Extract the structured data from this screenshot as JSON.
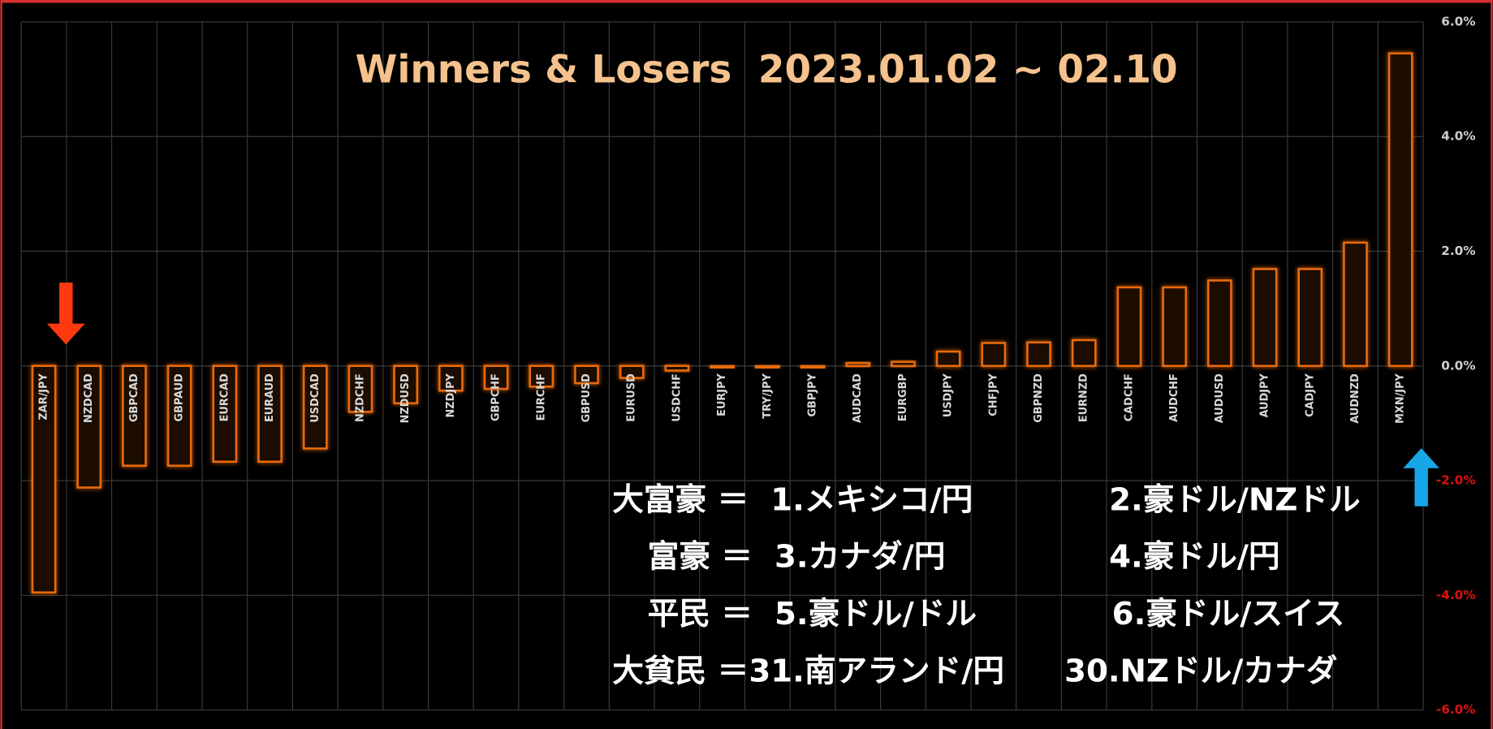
{
  "chart_data": {
    "type": "bar",
    "title": "Winners & Losers  2023.01.02 ~ 02.10",
    "categories": [
      "ZAR/JPY",
      "NZDCAD",
      "GBPCAD",
      "GBPAUD",
      "EURCAD",
      "EURAUD",
      "USDCAD",
      "NZDCHF",
      "NZDUSD",
      "NZDJPY",
      "GBPCHF",
      "EURCHF",
      "GBPUSD",
      "EURUSD",
      "USDCHF",
      "EURJPY",
      "TRY/JPY",
      "GBPJPY",
      "AUDCAD",
      "EURGBP",
      "USDJPY",
      "CHFJPY",
      "GBPNZD",
      "EURNZD",
      "CADCHF",
      "AUDCHF",
      "AUDUSD",
      "AUDJPY",
      "CADJPY",
      "AUDNZD",
      "MXN/JPY"
    ],
    "values": [
      -3.95,
      -2.12,
      -1.74,
      -1.74,
      -1.67,
      -1.67,
      -1.44,
      -0.8,
      -0.65,
      -0.43,
      -0.4,
      -0.36,
      -0.3,
      -0.21,
      -0.08,
      -0.03,
      -0.03,
      -0.03,
      0.05,
      0.07,
      0.25,
      0.4,
      0.41,
      0.45,
      1.37,
      1.37,
      1.49,
      1.69,
      1.69,
      2.15,
      5.45
    ],
    "color": "#e86a10",
    "ylim": [
      -6,
      6
    ],
    "yticks": [
      {
        "value": 6,
        "label": "6.0%"
      },
      {
        "value": 4,
        "label": "4.0%"
      },
      {
        "value": 2,
        "label": "2.0%"
      },
      {
        "value": 0,
        "label": "0.0%"
      },
      {
        "value": -2,
        "label": "-2.0%"
      },
      {
        "value": -4,
        "label": "-4.0%"
      },
      {
        "value": -6,
        "label": "-6.0%"
      }
    ],
    "negative_tick_color": "#e01010",
    "grid": true,
    "annotations": [
      {
        "left": "大富豪 ＝  1.メキシコ/円",
        "right": "2.豪ドル/NZドル"
      },
      {
        "left": "富豪 ＝  3.カナダ/円",
        "right": "4.豪ドル/円"
      },
      {
        "left": "平民 ＝  5.豪ドル/ドル",
        "right": "6.豪ドル/スイス"
      },
      {
        "left": "大貧民 ＝31.南アランド/円",
        "right": "30.NZドル/カナダ"
      }
    ]
  }
}
